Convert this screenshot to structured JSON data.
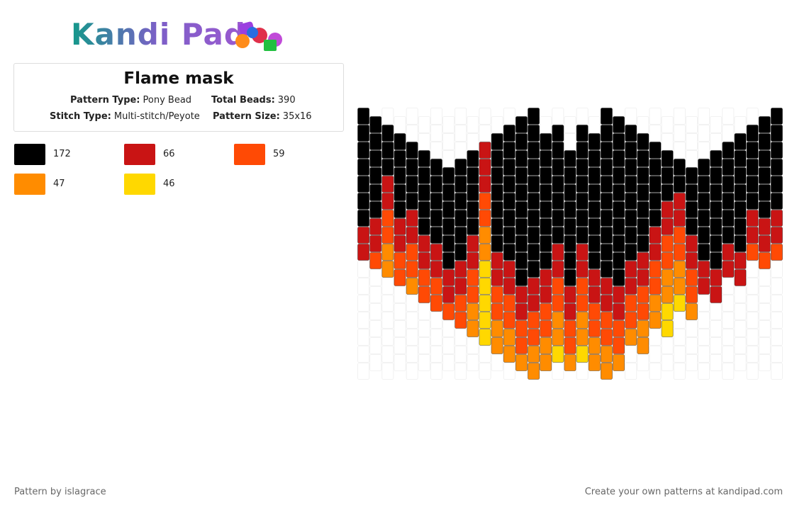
{
  "header": {
    "logo": "Kandi Pad"
  },
  "info": {
    "title": "Flame mask",
    "fields": [
      {
        "label": "Pattern Type:",
        "value": "Pony Bead"
      },
      {
        "label": "Total Beads:",
        "value": "390"
      },
      {
        "label": "Stitch Type:",
        "value": "Multi-stitch/Peyote"
      },
      {
        "label": "Pattern Size:",
        "value": "35x16"
      }
    ]
  },
  "legend": [
    {
      "color": "#000000",
      "count": 172
    },
    {
      "color": "#c91414",
      "count": 66
    },
    {
      "color": "#ff4a05",
      "count": 59
    },
    {
      "color": "#ff8c00",
      "count": 47
    },
    {
      "color": "#ffd800",
      "count": 46
    }
  ],
  "footer": {
    "left": "Pattern by islagrace",
    "right": "Create your own patterns at kandipad.com"
  }
}
